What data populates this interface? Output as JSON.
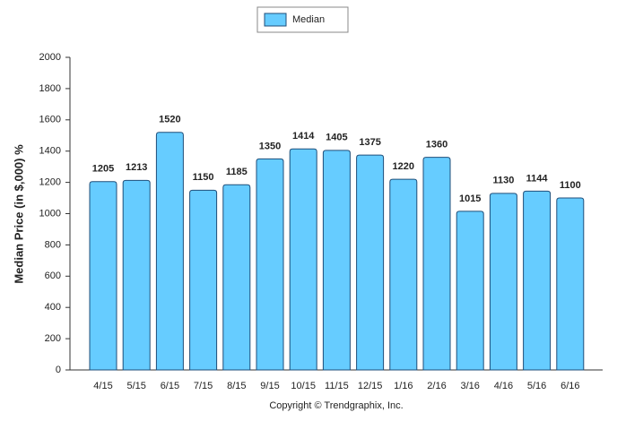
{
  "chart_data": {
    "type": "bar",
    "series_name": "Median",
    "y_label": "Median Price (in $,000) %",
    "footer": "Copyright © Trendgraphix, Inc.",
    "categories": [
      "4/15",
      "5/15",
      "6/15",
      "7/15",
      "8/15",
      "9/15",
      "10/15",
      "11/15",
      "12/15",
      "1/16",
      "2/16",
      "3/16",
      "4/16",
      "5/16",
      "6/16"
    ],
    "values": [
      1205,
      1213,
      1520,
      1150,
      1185,
      1350,
      1414,
      1405,
      1375,
      1220,
      1360,
      1015,
      1130,
      1144,
      1100
    ],
    "color": "#66ccff",
    "ylim": [
      0,
      2000
    ],
    "yticks": [
      0,
      200,
      400,
      600,
      800,
      1000,
      1200,
      1400,
      1600,
      1800,
      2000
    ],
    "grid": false
  }
}
